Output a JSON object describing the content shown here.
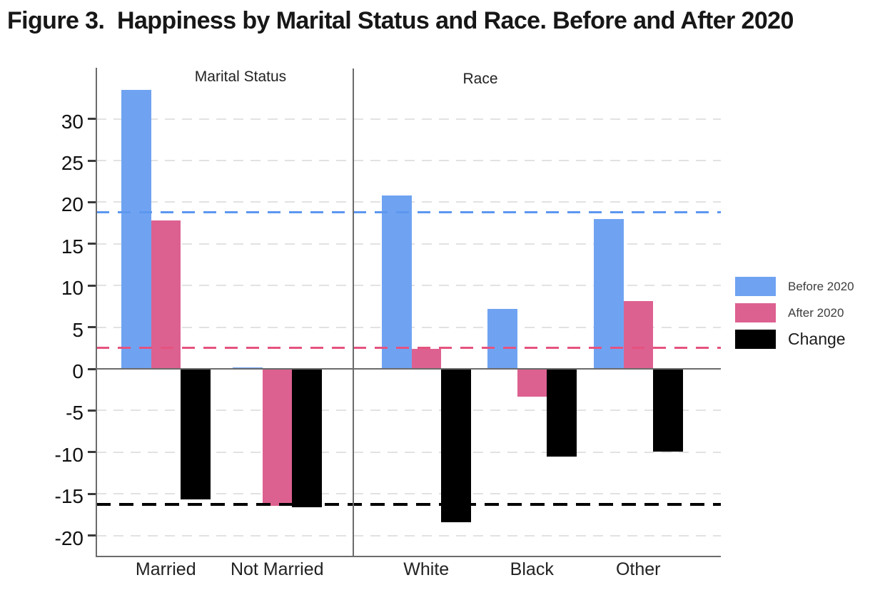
{
  "title": "Figure 3.  Happiness by Marital Status and Race. Before and After 2020",
  "legend": {
    "items": [
      {
        "label": "Before 2020",
        "color": "#6fa3f2"
      },
      {
        "label": "After 2020",
        "color": "#dd6190"
      },
      {
        "label": "Change",
        "color": "#000000"
      }
    ]
  },
  "chart_data": {
    "type": "bar",
    "title": "Figure 3.  Happiness by Marital Status and Race. Before and After 2020",
    "panels": [
      {
        "label": "Marital Status",
        "categories": [
          "Married",
          "Not Married"
        ]
      },
      {
        "label": "Race",
        "categories": [
          "White",
          "Black",
          "Other"
        ]
      }
    ],
    "categories": [
      "Married",
      "Not Married",
      "White",
      "Black",
      "Other"
    ],
    "series": [
      {
        "name": "Before 2020",
        "color": "#6fa3f2",
        "values": [
          33.5,
          0.2,
          20.8,
          7.2,
          18.0
        ]
      },
      {
        "name": "After 2020",
        "color": "#dd6190",
        "values": [
          17.8,
          -16.4,
          2.4,
          -3.3,
          8.1
        ]
      },
      {
        "name": "Change",
        "color": "#000000",
        "values": [
          -15.7,
          -16.6,
          -18.4,
          -10.5,
          -9.9
        ]
      }
    ],
    "reference_lines": [
      {
        "label": "Before 2020 overall",
        "value": 18.8,
        "color": "#5d97ef",
        "style": "dashed"
      },
      {
        "label": "After 2020 overall",
        "value": 2.5,
        "color": "#e5537f",
        "style": "dashed"
      },
      {
        "label": "Change overall",
        "value": -16.3,
        "color": "#000000",
        "style": "dashed"
      }
    ],
    "yaxis": {
      "min": -20,
      "max": 30,
      "step": 5,
      "ticks": [
        30,
        25,
        20,
        15,
        10,
        5,
        0,
        -5,
        -10,
        -15,
        -20
      ]
    },
    "grid": "horizontal dashed at every 5 units, solid line at 0",
    "legend_position": "right"
  }
}
